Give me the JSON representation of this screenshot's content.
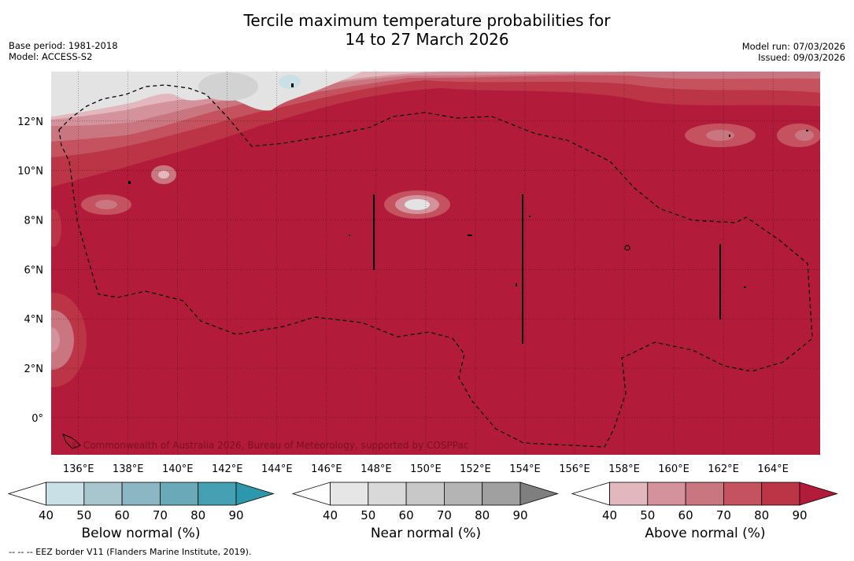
{
  "header": {
    "title_line1": "Tercile maximum temperature probabilities for",
    "title_line2": "14 to 27 March 2026",
    "base_period": "Base period: 1981-2018",
    "model": "Model: ACCESS-S2",
    "model_run": "Model run: 07/03/2026",
    "issued": "Issued: 09/03/2026"
  },
  "map": {
    "lon_ticks": [
      "136°E",
      "138°E",
      "140°E",
      "142°E",
      "144°E",
      "146°E",
      "148°E",
      "150°E",
      "152°E",
      "154°E",
      "156°E",
      "158°E",
      "160°E",
      "162°E",
      "164°E"
    ],
    "lat_ticks": [
      "12°N",
      "10°N",
      "8°N",
      "6°N",
      "4°N",
      "2°N",
      "0°"
    ],
    "lon_range": [
      134.9,
      165.9
    ],
    "lat_range": [
      -1.5,
      14.0
    ],
    "copyright": "© Commonwealth of Australia 2026, Bureau of Meteorology, supported by COSPPac",
    "colors": {
      "above_dominant": "#b31b3a",
      "near_land": "#e3e3e3"
    }
  },
  "legends": [
    {
      "label": "Below normal (%)",
      "ticks": [
        "40",
        "50",
        "60",
        "70",
        "80",
        "90"
      ],
      "colors": [
        "#ffffff",
        "#c9e0e7",
        "#a8c6ce",
        "#8ab7c3",
        "#6aaab8",
        "#44a0b2",
        "#2d97ab"
      ]
    },
    {
      "label": "Near normal (%)",
      "ticks": [
        "40",
        "50",
        "60",
        "70",
        "80",
        "90"
      ],
      "colors": [
        "#ffffff",
        "#e6e6e6",
        "#d9d9d9",
        "#c8c8c8",
        "#b4b4b4",
        "#a0a0a0",
        "#7f7f7f"
      ]
    },
    {
      "label": "Above normal (%)",
      "ticks": [
        "40",
        "50",
        "60",
        "70",
        "80",
        "90"
      ],
      "colors": [
        "#ffffff",
        "#e2b8be",
        "#d4939c",
        "#ca7680",
        "#c4525f",
        "#bc3547",
        "#b31b3a"
      ]
    }
  ],
  "footnote": "--  --  -- EEZ border V11 (Flanders Marine Institute, 2019)."
}
